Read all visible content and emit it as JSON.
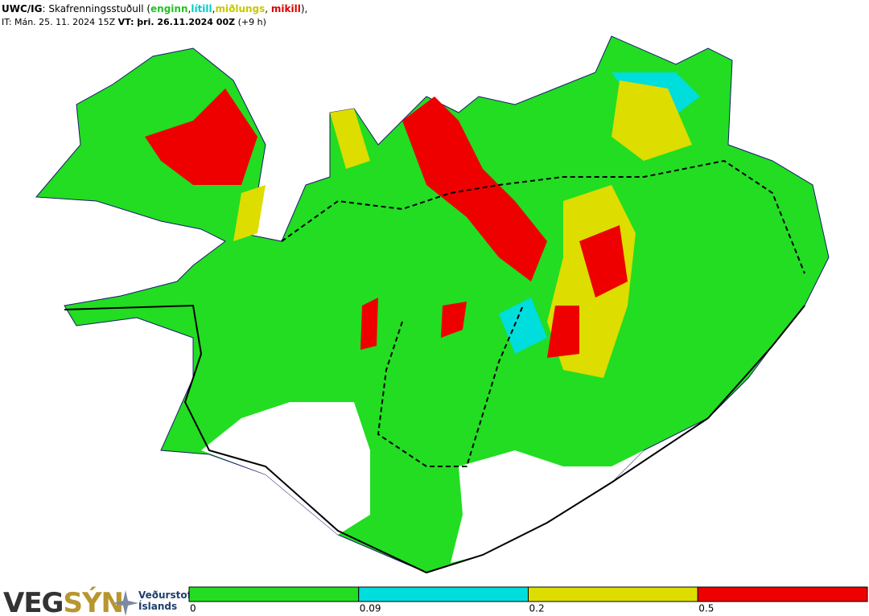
{
  "header": {
    "line1": [
      {
        "text": "UWC/IG",
        "bold": true,
        "color": "#000000"
      },
      {
        "text": ": Skafrenningsstuðull (",
        "bold": false,
        "color": "#000000"
      },
      {
        "text": "enginn",
        "bold": true,
        "color": "#22c322"
      },
      {
        "text": ",",
        "bold": false,
        "color": "#000000"
      },
      {
        "text": "lítill",
        "bold": true,
        "color": "#00cccc"
      },
      {
        "text": ",",
        "bold": false,
        "color": "#000000"
      },
      {
        "text": "miðlungs",
        "bold": true,
        "color": "#c8c800"
      },
      {
        "text": ", ",
        "bold": false,
        "color": "#000000"
      },
      {
        "text": "mikill",
        "bold": true,
        "color": "#dd0000"
      },
      {
        "text": "),",
        "bold": false,
        "color": "#000000"
      }
    ],
    "line2": [
      {
        "text": "IT: Mán. 25. 11. 2024 15Z ",
        "bold": false,
        "color": "#000000"
      },
      {
        "text": "VT: þri. 26.11.2024 00Z",
        "bold": true,
        "color": "#000000"
      },
      {
        "text": " (+9 h)",
        "bold": false,
        "color": "#000000"
      }
    ]
  },
  "logos": {
    "vegsyn_a": "VEG",
    "vegsyn_b": "SÝN",
    "vedurstofa_1": "Veðurstofa",
    "vedurstofa_2": "Íslands"
  },
  "legend": {
    "bins": [
      0,
      0.09,
      0.2,
      0.5
    ],
    "colors": [
      "#22dd22",
      "#00dddd",
      "#dddd00",
      "#ee0000"
    ]
  }
}
